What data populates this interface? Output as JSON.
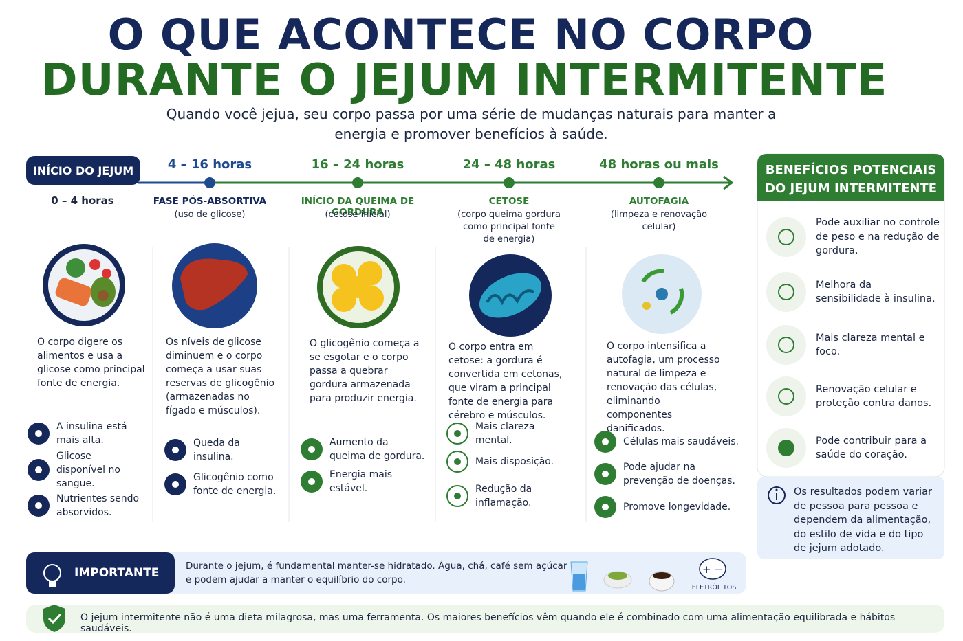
{
  "header": {
    "title_line1": "O QUE ACONTECE NO CORPO",
    "title_line2": "DURANTE O JEJUM INTERMITENTE",
    "subtitle": "Quando você jejua, seu corpo passa por uma série de mudanças naturais para manter a energia e promover benefícios à saúde."
  },
  "timeline": {
    "start_label": "INÍCIO DO JEJUM",
    "stages": [
      {
        "time": "0 – 4 horas",
        "description": "O corpo digere os alimentos e usa a glicose como principal fonte de energia.",
        "items": [
          "A insulina está mais alta.",
          "Glicose disponível no sangue.",
          "Nutrientes sendo absorvidos."
        ]
      },
      {
        "time": "4 – 16 horas",
        "phase": "FASE PÓS-ABSORTIVA",
        "note": "(uso de glicose)",
        "description": "Os níveis de glicose diminuem e o corpo começa a usar suas reservas de glicogênio (armazenadas no fígado e músculos).",
        "items": [
          "Queda da insulina.",
          "Glicogênio como fonte de energia."
        ]
      },
      {
        "time": "16 – 24 horas",
        "phase": "INÍCIO DA QUEIMA DE GORDURA",
        "note": "(cetose inicial)",
        "description": "O glicogênio começa a se esgotar e o corpo passa a quebrar gordura armazenada para produzir energia.",
        "items": [
          "Aumento da queima de gordura.",
          "Energia mais estável."
        ]
      },
      {
        "time": "24 – 48 horas",
        "phase": "CETOSE",
        "note": "(corpo queima gordura como principal fonte de energia)",
        "description": "O corpo entra em cetose: a gordura é convertida em cetonas, que viram a principal fonte de energia para cérebro e músculos.",
        "items": [
          "Mais clareza mental.",
          "Mais disposição.",
          "Redução da inflamação."
        ]
      },
      {
        "time": "48 horas ou mais",
        "phase": "AUTOFAGIA",
        "note": "(limpeza e renovação celular)",
        "description": "O corpo intensifica a autofagia, um processo natural de limpeza e renovação das células, eliminando componentes danificados.",
        "items": [
          "Células mais saudáveis.",
          "Pode ajudar na prevenção de doenças.",
          "Promove longevidade."
        ]
      }
    ]
  },
  "benefits": {
    "title": "BENEFÍCIOS POTENCIAIS DO JEJUM INTERMITENTE",
    "items": [
      "Pode auxiliar no controle de peso e na redução de gordura.",
      "Melhora da sensibilidade à insulina.",
      "Mais clareza mental e foco.",
      "Renovação celular e proteção contra danos.",
      "Pode contribuir para a saúde do coração."
    ],
    "note": "Os resultados podem variar de pessoa para pessoa e dependem da alimentação, do estilo de vida e do tipo de jejum adotado."
  },
  "important": {
    "label": "IMPORTANTE",
    "text": "Durante o jejum, é fundamental manter-se hidratado. Água, chá, café sem açúcar e podem ajudar a manter o equilíbrio do corpo.",
    "electrolytes_label": "ELETRÓLITOS"
  },
  "footer": {
    "text": "O jejum intermitente não é uma dieta milagrosa, mas uma ferramenta. Os maiores benefícios vêm quando ele é combinado com uma alimentação equilibrada e hábitos saudáveis."
  }
}
